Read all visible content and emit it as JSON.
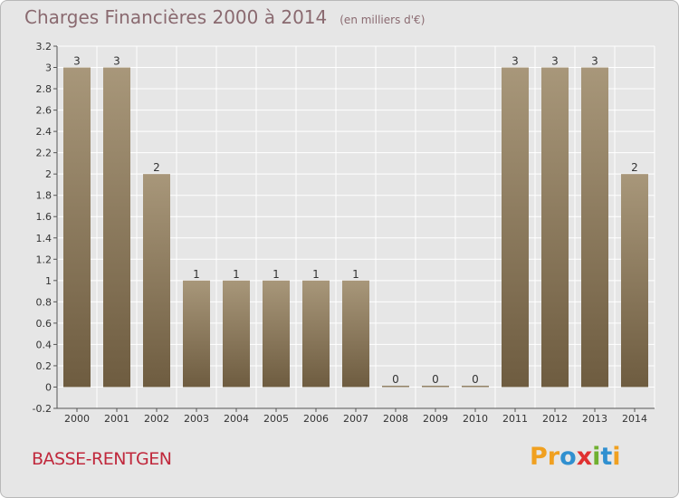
{
  "header": {
    "title": "Charges Financières 2000 à 2014",
    "unit": "(en milliers d'€)"
  },
  "footer": {
    "commune": "BASSE-RENTGEN"
  },
  "logo": {
    "letters": [
      "P",
      "r",
      "o",
      "x",
      "i",
      "t",
      "i"
    ],
    "colors": [
      "#f0a020",
      "#f0a020",
      "#3090d0",
      "#e03030",
      "#70b030",
      "#3090d0",
      "#f0a020"
    ]
  },
  "colors": {
    "bar_top": "#a8977a",
    "bar_bottom": "#6e5c40",
    "grid": "#ffffff",
    "background": "#e6e6e6"
  },
  "chart_data": {
    "type": "bar",
    "title": "Charges Financières 2000 à 2014",
    "subtitle": "(en milliers d'€)",
    "categories": [
      "2000",
      "2001",
      "2002",
      "2003",
      "2004",
      "2005",
      "2006",
      "2007",
      "2008",
      "2009",
      "2010",
      "2011",
      "2012",
      "2013",
      "2014"
    ],
    "values": [
      3,
      3,
      2,
      1,
      1,
      1,
      1,
      1,
      0,
      0,
      0,
      3,
      3,
      3,
      2
    ],
    "data_labels": [
      "3",
      "3",
      "2",
      "1",
      "1",
      "1",
      "1",
      "1",
      "0",
      "0",
      "0",
      "3",
      "3",
      "3",
      "2"
    ],
    "ylim": [
      -0.2,
      3.2
    ],
    "yticks": [
      -0.2,
      0,
      0.2,
      0.4,
      0.6,
      0.8,
      1,
      1.2,
      1.4,
      1.6,
      1.8,
      2,
      2.2,
      2.4,
      2.6,
      2.8,
      3,
      3.2
    ],
    "ytick_labels": [
      "-0.2",
      "0",
      "0.2",
      "0.4",
      "0.6",
      "0.8",
      "1",
      "1.2",
      "1.4",
      "1.6",
      "1.8",
      "2",
      "2.2",
      "2.4",
      "2.6",
      "2.8",
      "3",
      "3.2"
    ],
    "grid": true,
    "legend": "none"
  }
}
